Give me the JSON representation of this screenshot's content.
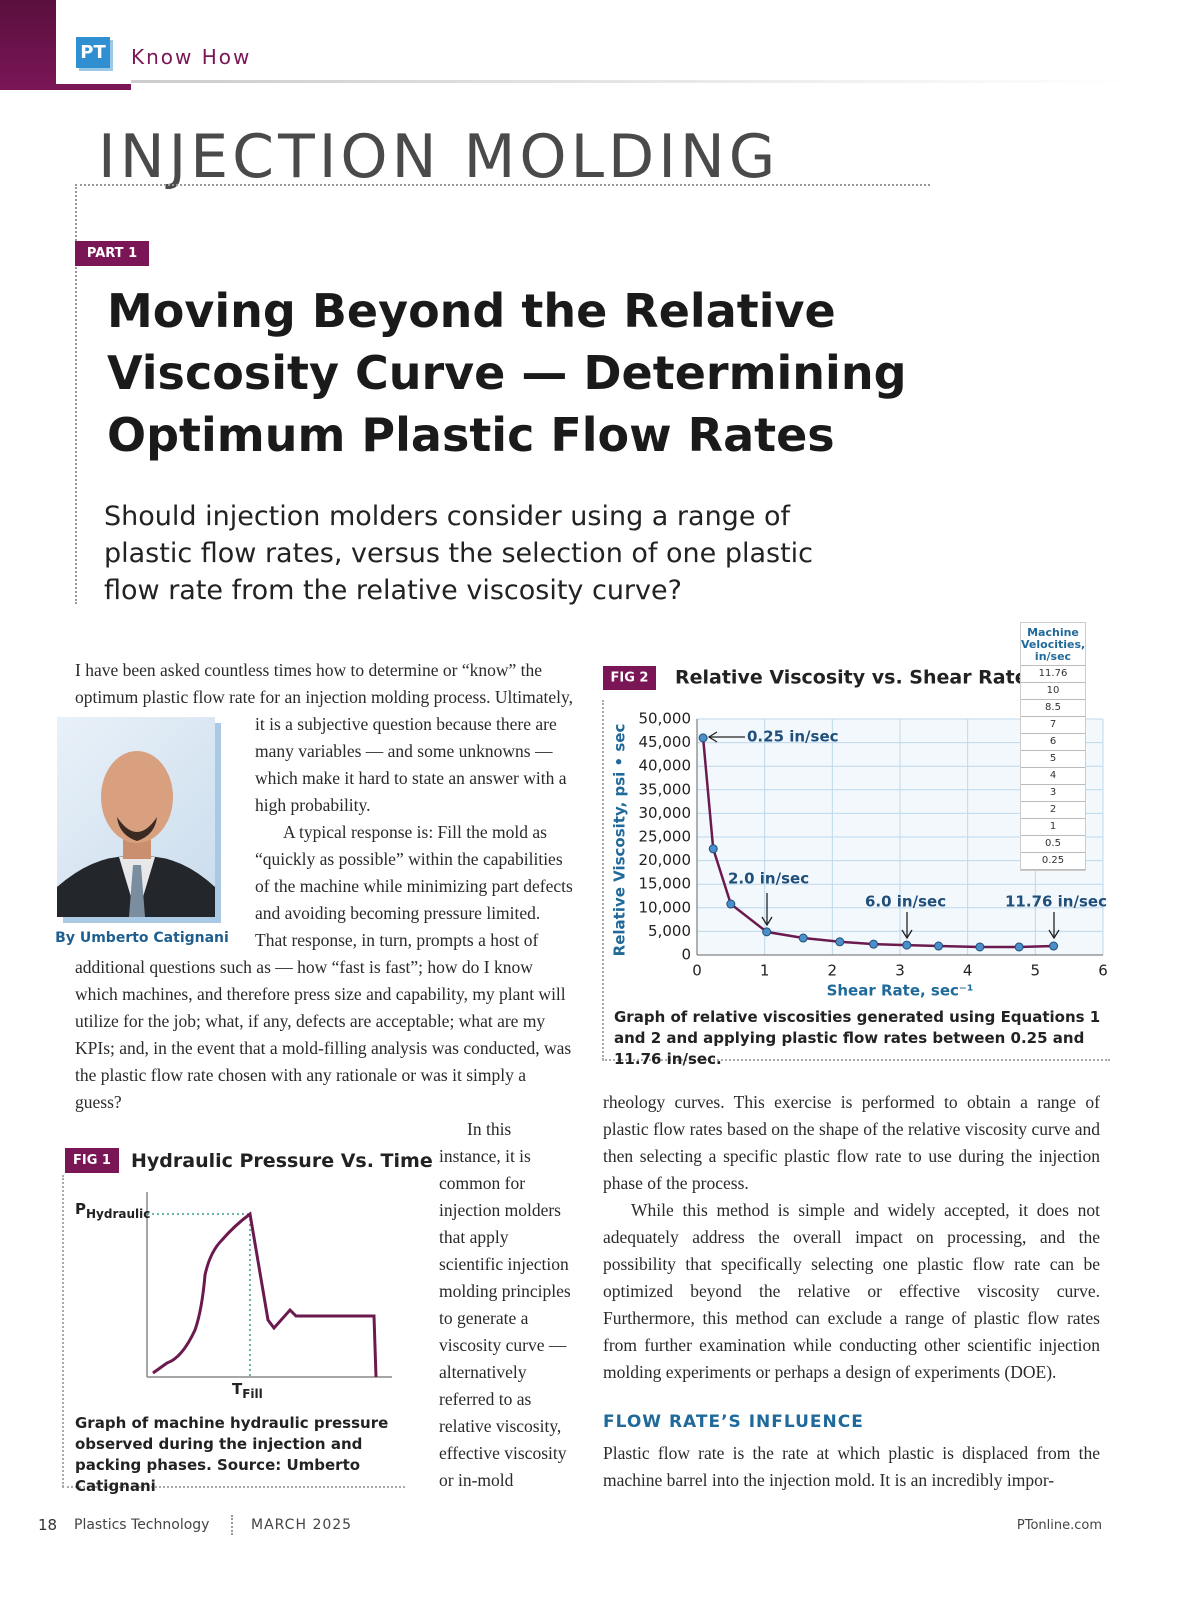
{
  "header": {
    "logo": "PT",
    "section": "Know How"
  },
  "article": {
    "topic": "INJECTION MOLDING",
    "part": "PART 1",
    "headline": [
      "Moving Beyond the Relative",
      "Viscosity Curve — Determining",
      "Optimum Plastic Flow Rates"
    ],
    "deck": [
      "Should injection molders consider using a range of",
      "plastic flow rates, versus the selection of one plastic",
      "flow rate from the relative viscosity curve?"
    ],
    "byline": "By Umberto Catignani",
    "body_left": [
      "I have been asked countless times how to determine or “know” the optimum plastic flow rate for an injection molding process. Ultimately, it is a subjective question because there are many variables — and some unknowns — which make it hard to state an answer with a high probability.",
      "A typical response is: Fill the mold as “quickly as possible” within the capabilities of the machine while minimizing part defects and avoiding becoming pressure limited. That response, in turn, prompts a host of additional questions such as — how “fast is fast”; how do I know which machines, and therefore press size and capability, my plant will utilize for the job; what, if any, defects are acceptable; what are my KPIs; and, in the event that a mold-filling analysis was conducted, was the plastic flow rate chosen with any rationale or was it simply a guess?"
    ],
    "body_narrow": "In this instance, it is common for injection molders that apply scientific injection molding principles to generate a viscosity curve — alternatively referred to as relative viscosity, effective viscosity or in-mold",
    "body_right": [
      "rheology curves. This exercise is performed to obtain a range of plastic flow rates based on the shape of the relative viscosity curve and then selecting a specific plastic flow rate to use during the injection phase of the process.",
      "While this method is simple and widely accepted, it does not adequately address the overall impact on processing, and the possibility that specifically selecting one plastic flow rate can be optimized beyond the relative or effective viscosity curve. Furthermore, this method can exclude a range of plastic flow rates from further examination while conducting other scientific injection molding experiments or perhaps a design of experiments (DOE)."
    ],
    "subhead": "FLOW RATE’S INFLUENCE",
    "body_right_after": "Plastic flow rate is the rate at which plastic is displaced from the machine barrel into the injection mold. It is an incredibly impor-"
  },
  "fig1": {
    "label": "FIG 1",
    "title": "Hydraulic Pressure Vs. Time",
    "y_label": "P",
    "y_label_sub": "Hydraulic",
    "x_label": "T",
    "x_label_sub": "Fill",
    "caption": "Graph of machine hydraulic pressure observed during the injection and packing phases. Source: Umberto Catignani"
  },
  "chart_data": {
    "type": "line",
    "label": "FIG 2",
    "title": "Relative Viscosity vs. Shear Rate",
    "xlabel": "Shear Rate, sec⁻¹",
    "ylabel": "Relative Viscosity, psi • sec",
    "x": [
      0.09,
      0.24,
      0.5,
      1.03,
      1.57,
      2.11,
      2.61,
      3.1,
      3.57,
      4.18,
      4.76,
      5.27
    ],
    "values": [
      46000,
      22500,
      10800,
      4900,
      3600,
      2800,
      2300,
      2100,
      1900,
      1700,
      1700,
      1900
    ],
    "color": "#6b1a4f",
    "marker_color": "#4a8fc9",
    "xlim": [
      0,
      6
    ],
    "xticks": [
      0,
      1,
      2,
      3,
      4,
      5,
      6
    ],
    "ylim": [
      0,
      50000
    ],
    "yticks": [
      0,
      {
        "value": 5000,
        "label": "5,000"
      },
      {
        "value": 10000,
        "label": "10,000"
      },
      {
        "value": 15000,
        "label": "15,000"
      },
      {
        "value": 20000,
        "label": "20,000"
      },
      {
        "value": 25000,
        "label": "25,000"
      },
      {
        "value": 30000,
        "label": "30,000"
      },
      {
        "value": 35000,
        "label": "35,000"
      },
      {
        "value": 40000,
        "label": "40,000"
      },
      {
        "value": 45000,
        "label": "45,000"
      },
      {
        "value": 50000,
        "label": "50,000"
      }
    ],
    "grid": true,
    "annotations": [
      "0.25 in/sec",
      "2.0 in/sec",
      "6.0 in/sec",
      "11.76 in/sec"
    ],
    "table_title": "Machine Velocities, in/sec",
    "table_values": [
      11.76,
      10,
      8.5,
      7,
      6,
      5,
      4,
      3,
      2,
      1,
      0.5,
      0.25
    ],
    "caption": "Graph of relative viscosities generated using Equations 1 and 2 and applying plastic flow rates between 0.25 and 11.76 in/sec."
  },
  "footer": {
    "page": 18,
    "publication": "Plastics Technology",
    "issue": "MARCH 2025",
    "site": "PTonline.com"
  }
}
